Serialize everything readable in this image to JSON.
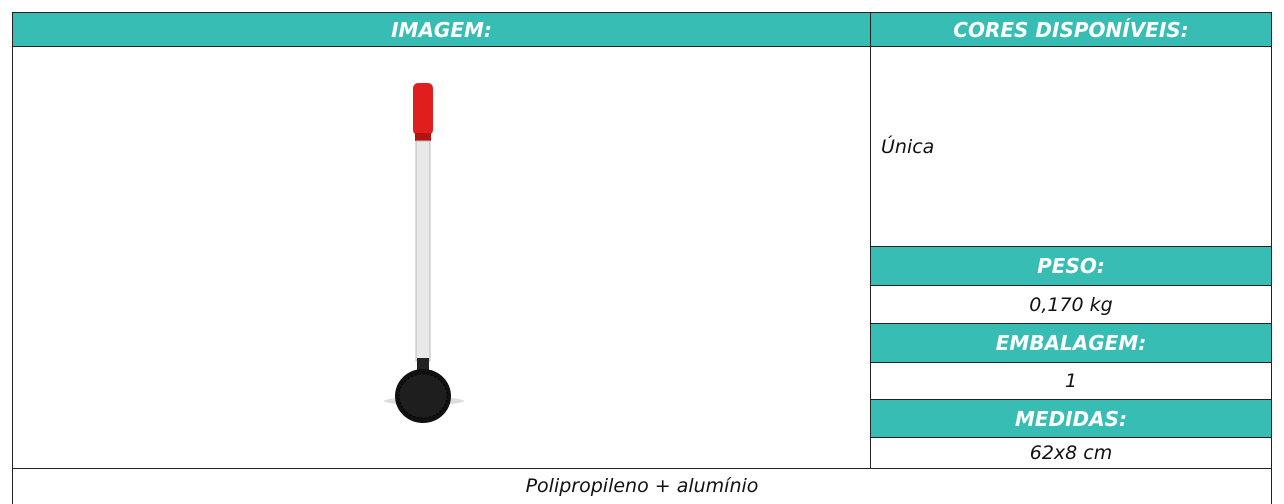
{
  "header": {
    "image_label": "IMAGEM:",
    "colors_label": "CORES DISPONÍVEIS:"
  },
  "colors": "Única",
  "specs": [
    {
      "label": "PESO:",
      "value": "0,170 kg"
    },
    {
      "label": "EMBALAGEM:",
      "value": "1"
    },
    {
      "label": "MEDIDAS:",
      "value": "62x8 cm"
    }
  ],
  "material": "Polipropileno + alumínio"
}
